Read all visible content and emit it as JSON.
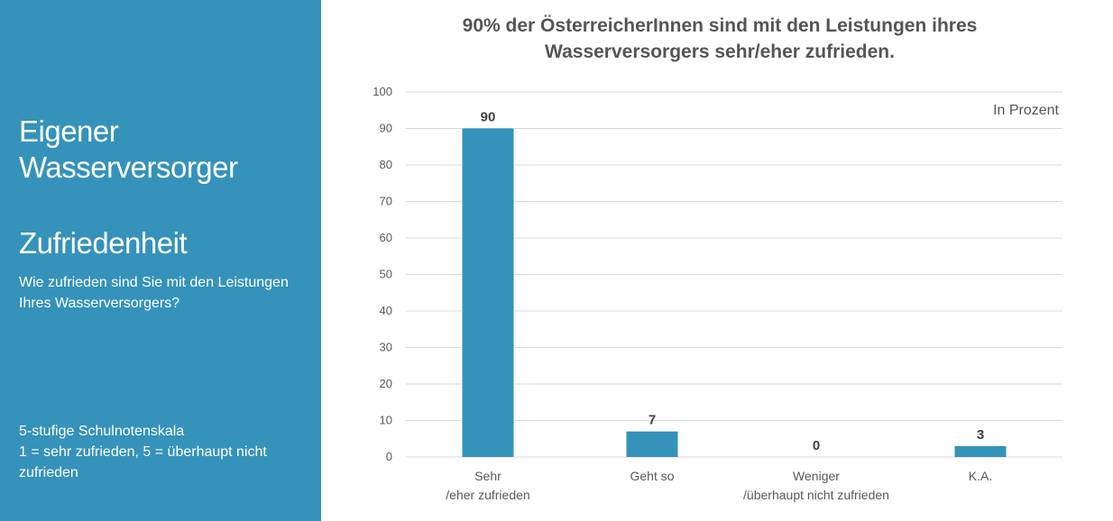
{
  "sidebar": {
    "title_line1": "Eigener",
    "title_line2": "Wasserversorger",
    "subtitle": "Zufriedenheit",
    "question": "Wie zufrieden sind Sie mit den Leistungen Ihres Wasserversorgers?",
    "scale_line1": "5-stufige Schulnotenskala",
    "scale_line2": "1 = sehr zufrieden, 5 = überhaupt nicht zufrieden",
    "background_color": "#3592ba"
  },
  "chart_data": {
    "type": "bar",
    "title": "90% der ÖsterreicherInnen sind mit den Leistungen ihres Wasserversorgers sehr/eher zufrieden.",
    "unit_label": "In Prozent",
    "categories": [
      [
        "Sehr",
        "/eher zufrieden"
      ],
      [
        "Geht so"
      ],
      [
        "Weniger",
        "/überhaupt nicht zufrieden"
      ],
      [
        "K.A."
      ]
    ],
    "values": [
      90,
      7,
      0,
      3
    ],
    "data_labels": [
      "90",
      "7",
      "0",
      "3"
    ],
    "ylim": [
      0,
      100
    ],
    "yticks": [
      0,
      10,
      20,
      30,
      40,
      50,
      60,
      70,
      80,
      90,
      100
    ],
    "xlabel": "",
    "ylabel": "",
    "grid": true,
    "legend": "none",
    "bar_color": "#3592ba"
  }
}
